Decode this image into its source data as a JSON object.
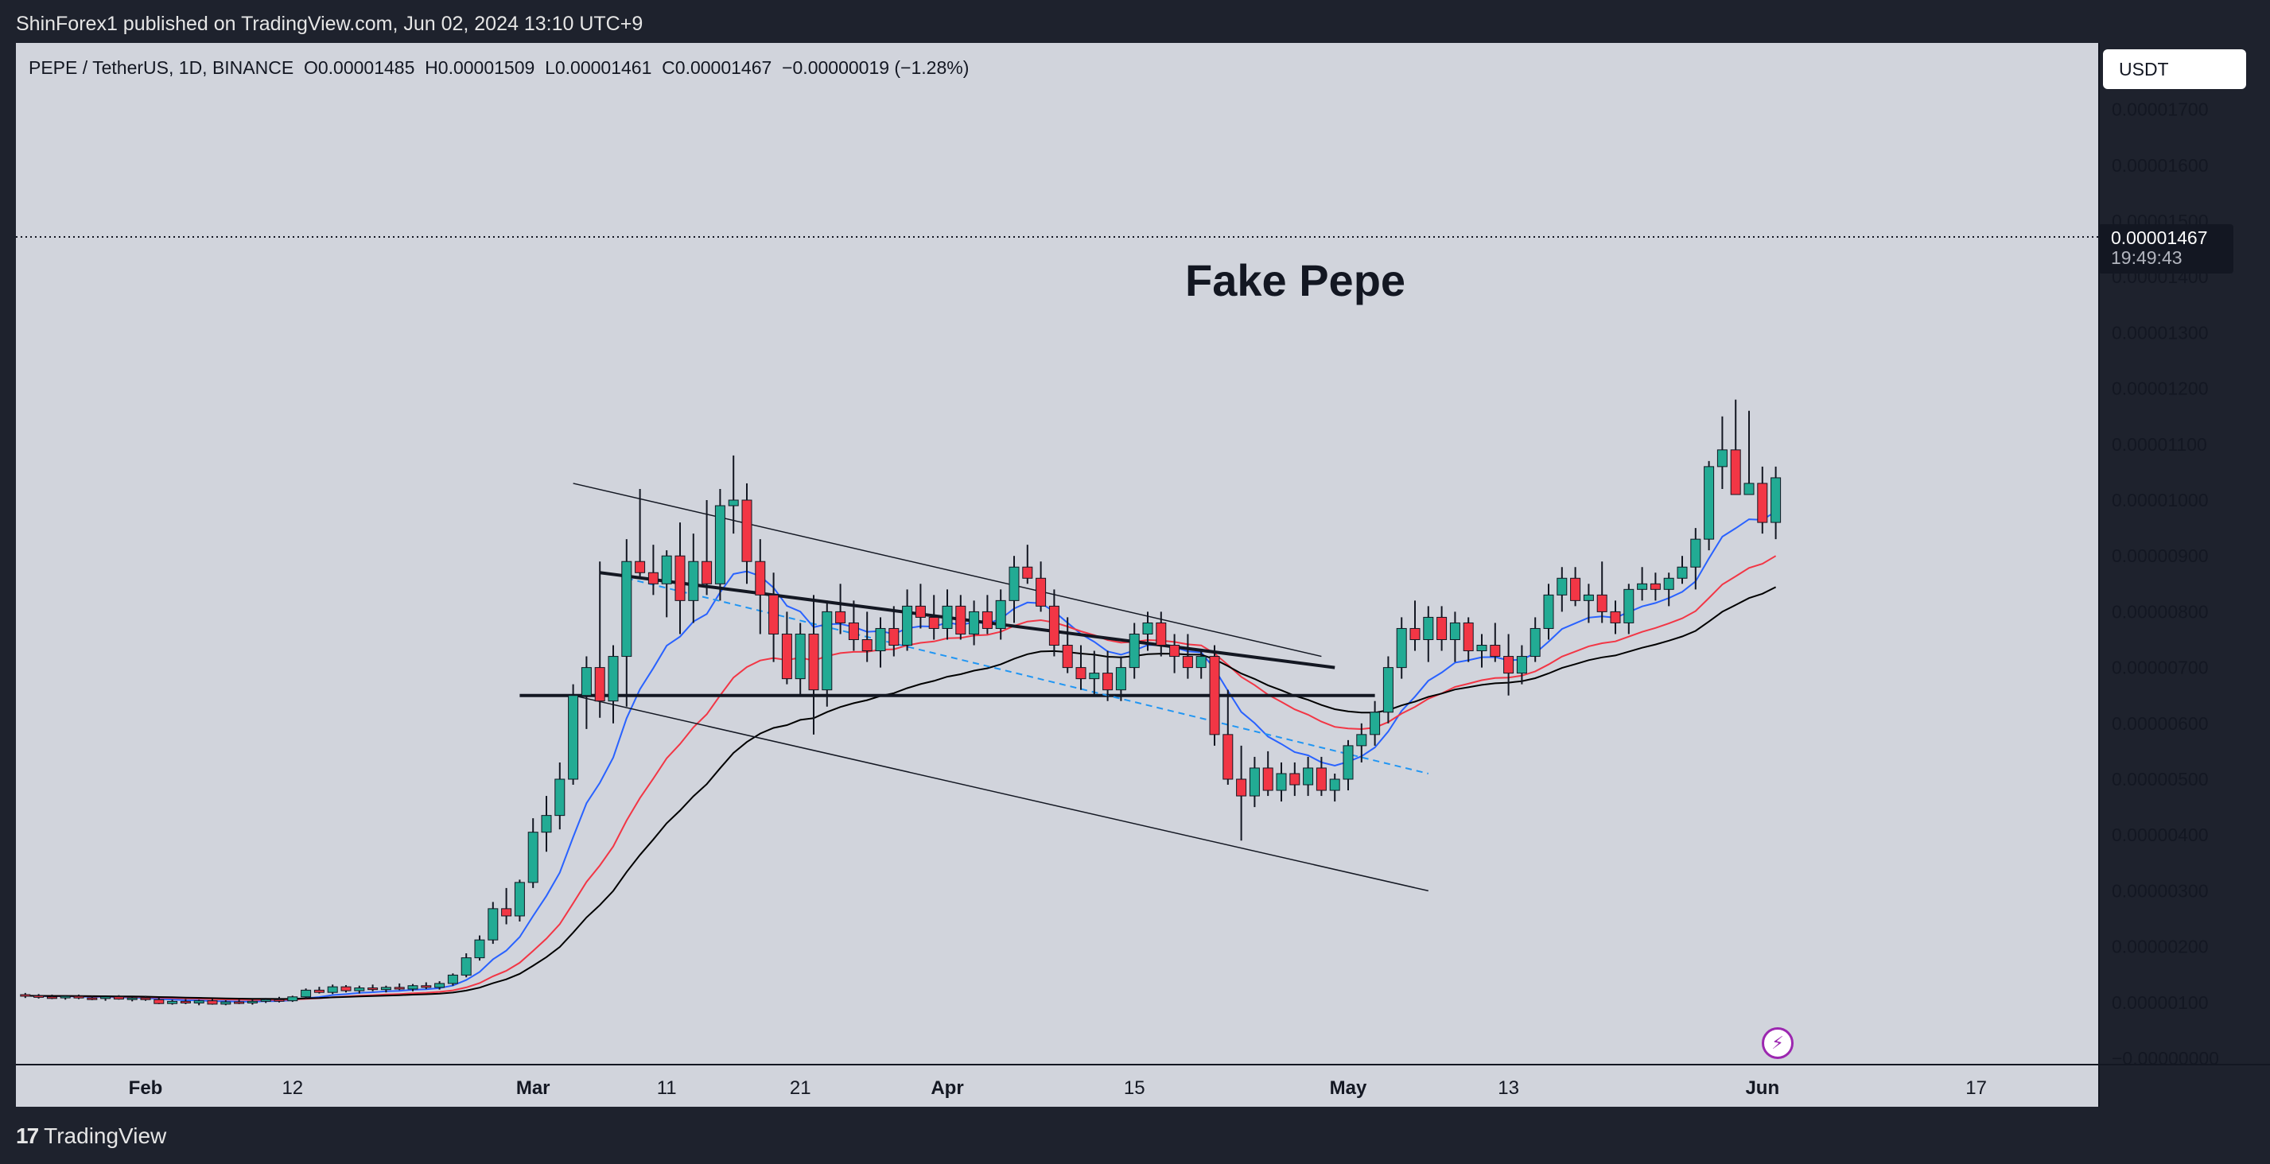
{
  "header": {
    "published_text": "ShinForex1 published on TradingView.com, Jun 02, 2024 13:10 UTC+9"
  },
  "footer": {
    "brand": "TradingView",
    "logo_icon": "tradingview-logo-icon"
  },
  "legend": {
    "symbol": "PEPE / TetherUS, 1D, BINANCE",
    "open": "O0.00001485",
    "high": "H0.00001509",
    "low": "L0.00001461",
    "close": "C0.00001467",
    "change": "−0.00000019 (−1.28%)"
  },
  "annotation": "Fake Pepe",
  "currency": "USDT",
  "last_price": {
    "value": "0.00001467",
    "countdown": "19:49:43"
  },
  "colors": {
    "background": "#d1d4dc",
    "up": "#22ab94",
    "down": "#f23645",
    "ema_fast": "#2962ff",
    "ema_mid": "#f23645",
    "ema_slow": "#000000"
  },
  "chart_data": {
    "type": "candlestick",
    "title": "",
    "xlabel": "",
    "ylabel": "",
    "ylim": [
      -0.0,
      1.75e-05
    ],
    "grid": false,
    "y_ticks": [
      "0.00001700",
      "0.00001600",
      "0.00001500",
      "0.00001400",
      "0.00001300",
      "0.00001200",
      "0.00001100",
      "0.00001000",
      "0.00000900",
      "0.00000800",
      "0.00000700",
      "0.00000600",
      "0.00000500",
      "0.00000400",
      "0.00000300",
      "0.00000200",
      "0.00000100",
      "−0.00000000"
    ],
    "x_ticks": [
      {
        "label": "Feb",
        "day": 0,
        "bold": true
      },
      {
        "label": "12",
        "day": 11,
        "bold": false
      },
      {
        "label": "Mar",
        "day": 29,
        "bold": true
      },
      {
        "label": "11",
        "day": 39,
        "bold": false
      },
      {
        "label": "21",
        "day": 49,
        "bold": false
      },
      {
        "label": "Apr",
        "day": 60,
        "bold": true
      },
      {
        "label": "15",
        "day": 74,
        "bold": false
      },
      {
        "label": "May",
        "day": 90,
        "bold": true
      },
      {
        "label": "13",
        "day": 102,
        "bold": false
      },
      {
        "label": "Jun",
        "day": 121,
        "bold": true
      },
      {
        "label": "17",
        "day": 137,
        "bold": false
      }
    ],
    "candles": [
      [
        -9,
        1.14,
        1.17,
        1.08,
        1.12
      ],
      [
        -8,
        1.12,
        1.15,
        1.07,
        1.1
      ],
      [
        -7,
        1.1,
        1.14,
        1.06,
        1.09
      ],
      [
        -6,
        1.09,
        1.13,
        1.05,
        1.11
      ],
      [
        -5,
        1.11,
        1.14,
        1.06,
        1.08
      ],
      [
        -4,
        1.08,
        1.12,
        1.04,
        1.07
      ],
      [
        -3,
        1.07,
        1.11,
        1.03,
        1.1
      ],
      [
        -2,
        1.1,
        1.13,
        1.05,
        1.06
      ],
      [
        -1,
        1.06,
        1.1,
        1.02,
        1.08
      ],
      [
        0,
        1.08,
        1.12,
        1.03,
        1.05
      ],
      [
        1,
        1.05,
        1.09,
        0.97,
        0.98
      ],
      [
        2,
        0.98,
        1.05,
        0.96,
        1.02
      ],
      [
        3,
        1.02,
        1.06,
        0.97,
        0.99
      ],
      [
        4,
        0.99,
        1.05,
        0.95,
        1.03
      ],
      [
        5,
        1.03,
        1.06,
        0.96,
        0.97
      ],
      [
        6,
        0.97,
        1.04,
        0.95,
        1.01
      ],
      [
        7,
        1.01,
        1.05,
        0.97,
        0.99
      ],
      [
        8,
        0.99,
        1.05,
        0.96,
        1.02
      ],
      [
        9,
        1.02,
        1.08,
        0.99,
        1.05
      ],
      [
        10,
        1.05,
        1.1,
        1.0,
        1.03
      ],
      [
        11,
        1.03,
        1.12,
        1.01,
        1.1
      ],
      [
        12,
        1.1,
        1.25,
        1.07,
        1.22
      ],
      [
        13,
        1.22,
        1.28,
        1.16,
        1.18
      ],
      [
        14,
        1.18,
        1.32,
        1.15,
        1.28
      ],
      [
        15,
        1.28,
        1.31,
        1.18,
        1.21
      ],
      [
        16,
        1.21,
        1.3,
        1.16,
        1.26
      ],
      [
        17,
        1.26,
        1.32,
        1.2,
        1.23
      ],
      [
        18,
        1.23,
        1.3,
        1.18,
        1.27
      ],
      [
        19,
        1.27,
        1.34,
        1.22,
        1.24
      ],
      [
        20,
        1.24,
        1.33,
        1.2,
        1.3
      ],
      [
        21,
        1.3,
        1.36,
        1.24,
        1.27
      ],
      [
        22,
        1.27,
        1.38,
        1.23,
        1.34
      ],
      [
        23,
        1.34,
        1.52,
        1.3,
        1.49
      ],
      [
        24,
        1.49,
        1.88,
        1.45,
        1.8
      ],
      [
        25,
        1.8,
        2.2,
        1.75,
        2.12
      ],
      [
        26,
        2.12,
        2.8,
        2.05,
        2.68
      ],
      [
        27,
        2.68,
        3.05,
        2.4,
        2.55
      ],
      [
        28,
        2.55,
        3.2,
        2.45,
        3.15
      ],
      [
        29,
        3.15,
        4.3,
        3.05,
        4.05
      ],
      [
        30,
        4.05,
        4.7,
        3.7,
        4.35
      ],
      [
        31,
        4.35,
        5.3,
        4.1,
        5.0
      ],
      [
        32,
        5.0,
        6.7,
        4.9,
        6.5
      ],
      [
        33,
        6.5,
        7.2,
        5.9,
        7.0
      ],
      [
        34,
        7.0,
        8.9,
        6.1,
        6.4
      ],
      [
        35,
        6.4,
        7.4,
        6.0,
        7.2
      ],
      [
        36,
        7.2,
        9.3,
        6.3,
        8.9
      ],
      [
        37,
        8.9,
        10.2,
        8.6,
        8.7
      ],
      [
        38,
        8.7,
        9.2,
        8.3,
        8.5
      ],
      [
        39,
        8.5,
        9.1,
        7.9,
        9.0
      ],
      [
        40,
        9.0,
        9.6,
        7.6,
        8.2
      ],
      [
        41,
        8.2,
        9.4,
        7.8,
        8.9
      ],
      [
        42,
        8.9,
        10.0,
        8.3,
        8.5
      ],
      [
        43,
        8.5,
        10.2,
        8.2,
        9.9
      ],
      [
        44,
        9.9,
        10.8,
        9.4,
        10.0
      ],
      [
        45,
        10.0,
        10.3,
        8.5,
        8.9
      ],
      [
        46,
        8.9,
        9.3,
        7.6,
        8.3
      ],
      [
        47,
        8.3,
        8.7,
        7.1,
        7.6
      ],
      [
        48,
        7.6,
        8.0,
        6.7,
        6.8
      ],
      [
        49,
        6.8,
        7.8,
        6.5,
        7.6
      ],
      [
        50,
        7.6,
        8.3,
        5.8,
        6.6
      ],
      [
        51,
        6.6,
        8.2,
        6.3,
        8.0
      ],
      [
        52,
        8.0,
        8.5,
        7.6,
        7.8
      ],
      [
        53,
        7.8,
        8.2,
        7.3,
        7.5
      ],
      [
        54,
        7.5,
        8.0,
        7.1,
        7.3
      ],
      [
        55,
        7.3,
        7.9,
        7.0,
        7.7
      ],
      [
        56,
        7.7,
        8.1,
        7.2,
        7.4
      ],
      [
        57,
        7.4,
        8.4,
        7.3,
        8.1
      ],
      [
        58,
        8.1,
        8.5,
        7.7,
        7.9
      ],
      [
        59,
        7.9,
        8.3,
        7.5,
        7.7
      ],
      [
        60,
        7.7,
        8.4,
        7.5,
        8.1
      ],
      [
        61,
        8.1,
        8.3,
        7.5,
        7.6
      ],
      [
        62,
        7.6,
        8.2,
        7.4,
        8.0
      ],
      [
        63,
        8.0,
        8.3,
        7.6,
        7.7
      ],
      [
        64,
        7.7,
        8.4,
        7.5,
        8.2
      ],
      [
        65,
        8.2,
        9.0,
        7.8,
        8.8
      ],
      [
        66,
        8.8,
        9.2,
        8.5,
        8.6
      ],
      [
        67,
        8.6,
        8.9,
        8.0,
        8.1
      ],
      [
        68,
        8.1,
        8.4,
        7.2,
        7.4
      ],
      [
        69,
        7.4,
        7.9,
        6.9,
        7.0
      ],
      [
        70,
        7.0,
        7.4,
        6.6,
        6.8
      ],
      [
        71,
        6.8,
        7.3,
        6.5,
        6.9
      ],
      [
        72,
        6.9,
        7.3,
        6.4,
        6.6
      ],
      [
        73,
        6.6,
        7.2,
        6.4,
        7.0
      ],
      [
        74,
        7.0,
        7.8,
        6.8,
        7.6
      ],
      [
        75,
        7.6,
        8.0,
        7.3,
        7.8
      ],
      [
        76,
        7.8,
        8.0,
        7.2,
        7.4
      ],
      [
        77,
        7.4,
        7.6,
        6.9,
        7.2
      ],
      [
        78,
        7.2,
        7.6,
        6.8,
        7.0
      ],
      [
        79,
        7.0,
        7.3,
        6.8,
        7.2
      ],
      [
        80,
        7.2,
        7.4,
        5.6,
        5.8
      ],
      [
        81,
        5.8,
        6.6,
        4.9,
        5.0
      ],
      [
        82,
        5.0,
        5.6,
        3.9,
        4.7
      ],
      [
        83,
        4.7,
        5.4,
        4.5,
        5.2
      ],
      [
        84,
        5.2,
        5.5,
        4.7,
        4.8
      ],
      [
        85,
        4.8,
        5.3,
        4.6,
        5.1
      ],
      [
        86,
        5.1,
        5.3,
        4.7,
        4.9
      ],
      [
        87,
        4.9,
        5.4,
        4.7,
        5.2
      ],
      [
        88,
        5.2,
        5.4,
        4.7,
        4.8
      ],
      [
        89,
        4.8,
        5.1,
        4.6,
        5.0
      ],
      [
        90,
        5.0,
        5.7,
        4.8,
        5.6
      ],
      [
        91,
        5.6,
        6.0,
        5.3,
        5.8
      ],
      [
        92,
        5.8,
        6.4,
        5.6,
        6.2
      ],
      [
        93,
        6.2,
        7.2,
        6.0,
        7.0
      ],
      [
        94,
        7.0,
        7.9,
        6.8,
        7.7
      ],
      [
        95,
        7.7,
        8.2,
        7.3,
        7.5
      ],
      [
        96,
        7.5,
        8.1,
        7.1,
        7.9
      ],
      [
        97,
        7.9,
        8.1,
        7.3,
        7.5
      ],
      [
        98,
        7.5,
        8.0,
        7.1,
        7.8
      ],
      [
        99,
        7.8,
        7.9,
        7.1,
        7.3
      ],
      [
        100,
        7.3,
        7.6,
        7.0,
        7.4
      ],
      [
        101,
        7.4,
        7.8,
        7.1,
        7.2
      ],
      [
        102,
        7.2,
        7.6,
        6.5,
        6.9
      ],
      [
        103,
        6.9,
        7.4,
        6.7,
        7.2
      ],
      [
        104,
        7.2,
        7.9,
        7.1,
        7.7
      ],
      [
        105,
        7.7,
        8.5,
        7.5,
        8.3
      ],
      [
        106,
        8.3,
        8.8,
        8.0,
        8.6
      ],
      [
        107,
        8.6,
        8.8,
        8.1,
        8.2
      ],
      [
        108,
        8.2,
        8.5,
        7.8,
        8.3
      ],
      [
        109,
        8.3,
        8.9,
        7.8,
        8.0
      ],
      [
        110,
        8.0,
        8.2,
        7.6,
        7.8
      ],
      [
        111,
        7.8,
        8.5,
        7.6,
        8.4
      ],
      [
        112,
        8.4,
        8.8,
        8.2,
        8.5
      ],
      [
        113,
        8.5,
        8.7,
        8.2,
        8.4
      ],
      [
        114,
        8.4,
        8.7,
        8.1,
        8.6
      ],
      [
        115,
        8.6,
        9.0,
        8.5,
        8.8
      ],
      [
        116,
        8.8,
        9.5,
        8.4,
        9.3
      ],
      [
        117,
        9.3,
        10.7,
        9.1,
        10.6
      ],
      [
        118,
        10.6,
        11.5,
        10.2,
        10.9
      ]
    ],
    "candles_note": "",
    "candles_recent": [
      [
        119,
        10.9,
        11.8,
        10.1,
        10.1
      ],
      [
        120,
        10.1,
        11.6,
        10.3,
        10.3
      ],
      [
        121,
        10.3,
        10.6,
        9.4,
        9.6
      ],
      [
        122,
        9.6,
        10.6,
        9.3,
        10.4
      ]
    ]
  }
}
